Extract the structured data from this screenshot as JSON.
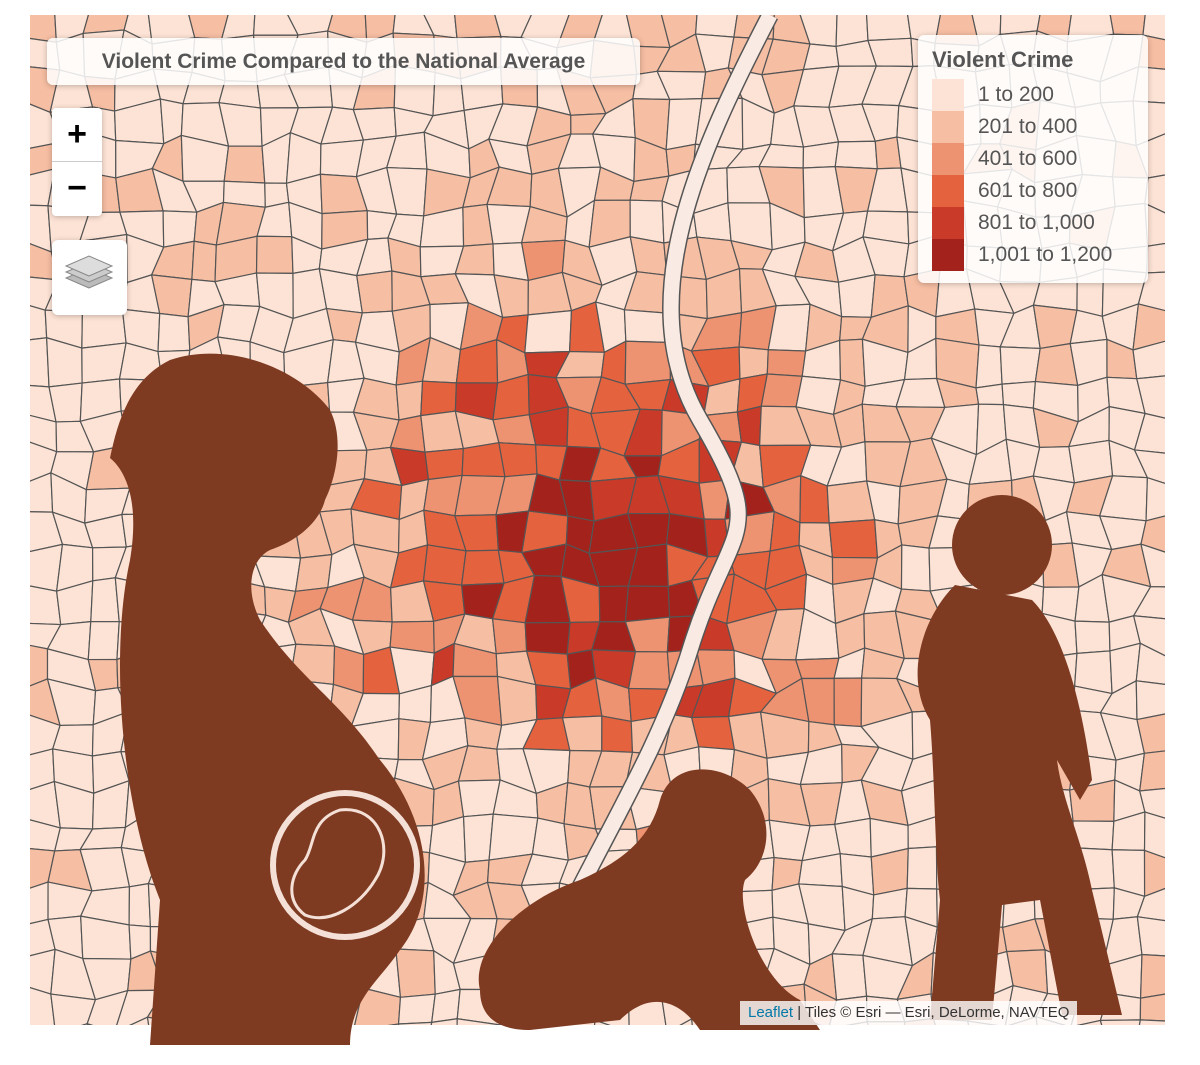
{
  "map": {
    "title": "Violent Crime Compared to the National Average",
    "zoom_in": "+",
    "zoom_out": "−"
  },
  "legend": {
    "title": "Violent Crime",
    "items": [
      {
        "label": "1 to 200",
        "color": "#fde3d5"
      },
      {
        "label": "201 to 400",
        "color": "#f6bea3"
      },
      {
        "label": "401 to 600",
        "color": "#ee9372"
      },
      {
        "label": "601 to 800",
        "color": "#e5623f"
      },
      {
        "label": "801 to 1,000",
        "color": "#c93a29"
      },
      {
        "label": "1,001 to 1,200",
        "color": "#a3221b"
      }
    ]
  },
  "attribution": {
    "link": "Leaflet",
    "text": "| Tiles © Esri — Esri, DeLorme, NAVTEQ"
  }
}
